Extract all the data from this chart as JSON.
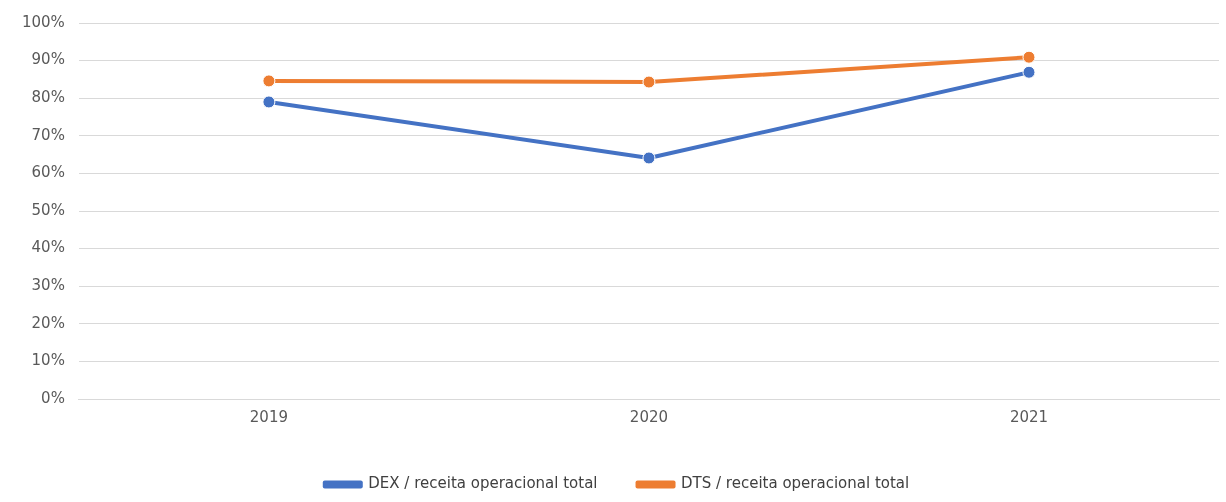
{
  "chart_data": {
    "type": "line",
    "categories": [
      "2019",
      "2020",
      "2021"
    ],
    "series": [
      {
        "name": "DEX / receita operacional total",
        "color": "#4472c4",
        "values": [
          79.0,
          64.1,
          86.9
        ]
      },
      {
        "name": "DTS / receita operacional total",
        "color": "#ed7d31",
        "values": [
          84.6,
          84.3,
          90.9
        ]
      }
    ],
    "ylim": [
      0,
      100
    ],
    "yticks": [
      {
        "value": 0,
        "label": "0%"
      },
      {
        "value": 10,
        "label": "10%"
      },
      {
        "value": 20,
        "label": "20%"
      },
      {
        "value": 30,
        "label": "30%"
      },
      {
        "value": 40,
        "label": "40%"
      },
      {
        "value": 50,
        "label": "50%"
      },
      {
        "value": 60,
        "label": "60%"
      },
      {
        "value": 70,
        "label": "70%"
      },
      {
        "value": 80,
        "label": "80%"
      },
      {
        "value": 90,
        "label": "90%"
      },
      {
        "value": 100,
        "label": "100%"
      }
    ],
    "grid": "y",
    "legend": "bottom",
    "marker": "circle",
    "line_style": "solid"
  }
}
